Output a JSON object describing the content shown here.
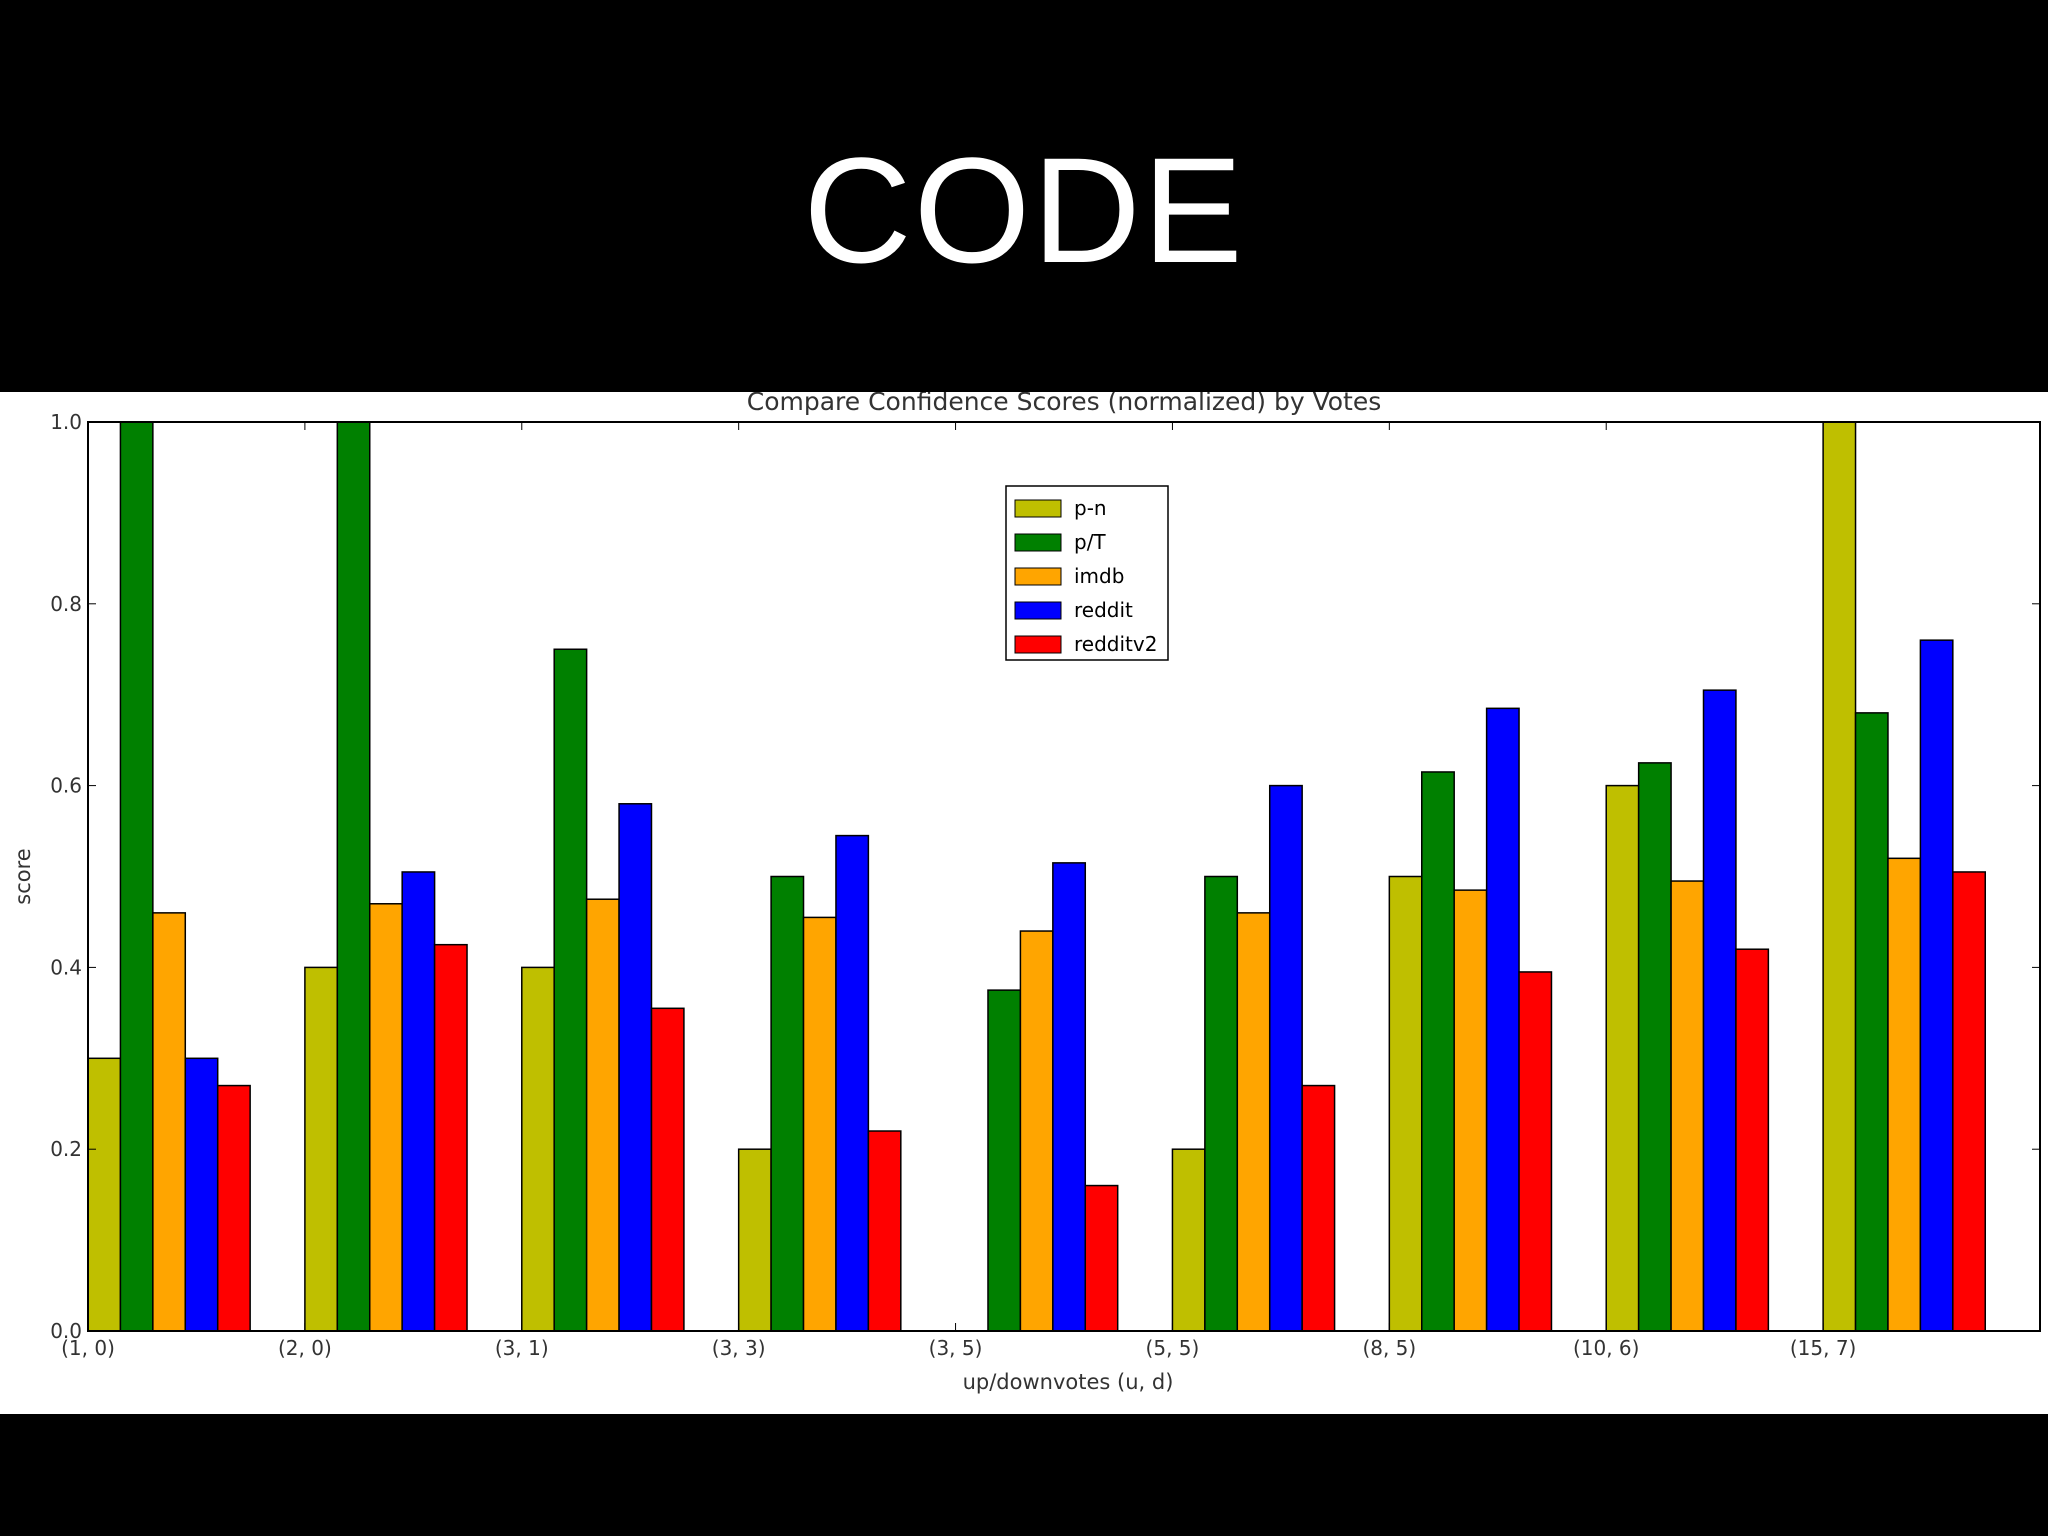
{
  "slide": {
    "title": "CODE"
  },
  "chart_data": {
    "type": "bar",
    "title": "Compare Confidence Scores (normalized) by Votes",
    "xlabel": "up/downvotes (u, d)",
    "ylabel": "score",
    "ylim": [
      0,
      1.0
    ],
    "yticks": [
      "0.0",
      "0.2",
      "0.4",
      "0.6",
      "0.8",
      "1.0"
    ],
    "categories": [
      "(1, 0)",
      "(2, 0)",
      "(3, 1)",
      "(3, 3)",
      "(3, 5)",
      "(5, 5)",
      "(8, 5)",
      "(10, 6)",
      "(15, 7)"
    ],
    "legend_position": "top-center",
    "grid": false,
    "series": [
      {
        "name": "p-n",
        "color": "#bfbf00",
        "values": [
          0.3,
          0.4,
          0.4,
          0.2,
          0.0,
          0.2,
          0.5,
          0.6,
          1.0
        ]
      },
      {
        "name": "p/T",
        "color": "#008000",
        "values": [
          1.0,
          1.0,
          0.75,
          0.5,
          0.375,
          0.5,
          0.615,
          0.625,
          0.68
        ]
      },
      {
        "name": "imdb",
        "color": "#ffa500",
        "values": [
          0.46,
          0.47,
          0.475,
          0.455,
          0.44,
          0.46,
          0.485,
          0.495,
          0.52
        ]
      },
      {
        "name": "reddit",
        "color": "#0000ff",
        "values": [
          0.3,
          0.505,
          0.58,
          0.545,
          0.515,
          0.6,
          0.685,
          0.705,
          0.76
        ]
      },
      {
        "name": "redditv2",
        "color": "#ff0000",
        "values": [
          0.27,
          0.425,
          0.355,
          0.22,
          0.16,
          0.27,
          0.395,
          0.42,
          0.505
        ]
      }
    ]
  }
}
